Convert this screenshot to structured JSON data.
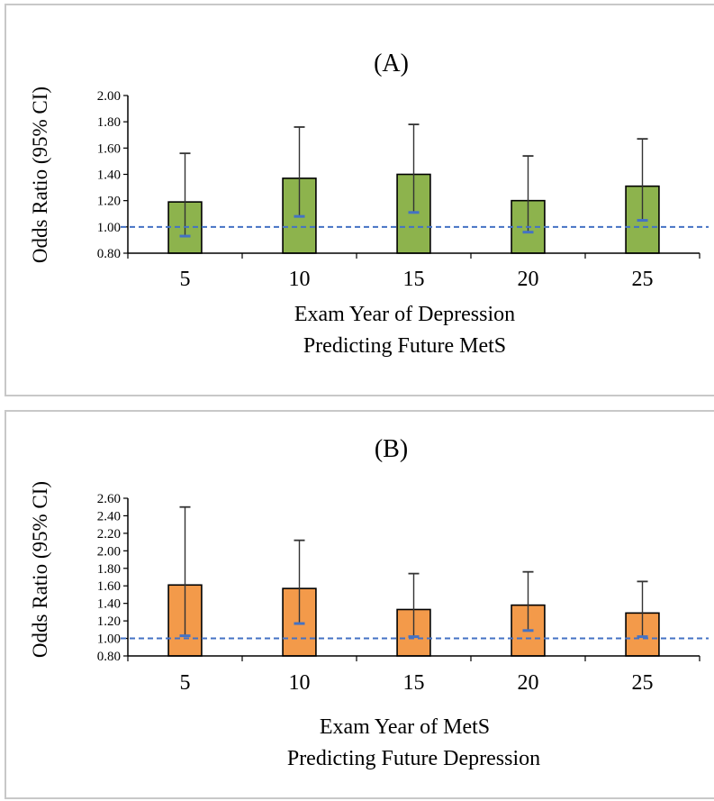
{
  "colors": {
    "panel_a_bar": "#8db34d",
    "panel_b_bar": "#f39a4a",
    "reference_line": "#4472c4",
    "axis": "#000000"
  },
  "chart_data": [
    {
      "type": "bar",
      "title": "(A)",
      "xlabel_lines": [
        "Exam Year of Depression",
        "Predicting Future MetS"
      ],
      "ylabel": "Odds Ratio (95% CI)",
      "categories": [
        "5",
        "10",
        "15",
        "20",
        "25"
      ],
      "values": [
        1.19,
        1.37,
        1.4,
        1.2,
        1.31
      ],
      "ci_lower": [
        0.93,
        1.08,
        1.11,
        0.96,
        1.05
      ],
      "ci_upper": [
        1.56,
        1.76,
        1.78,
        1.54,
        1.67
      ],
      "ylim": [
        0.8,
        2.0
      ],
      "yticks": [
        "0.80",
        "1.00",
        "1.20",
        "1.40",
        "1.60",
        "1.80",
        "2.00"
      ],
      "reference_line": 1.0,
      "grid": false,
      "legend": "none"
    },
    {
      "type": "bar",
      "title": "(B)",
      "xlabel_lines": [
        "Exam Year of MetS",
        "Predicting Future Depression"
      ],
      "ylabel": "Odds Ratio (95% CI)",
      "categories": [
        "5",
        "10",
        "15",
        "20",
        "25"
      ],
      "values": [
        1.61,
        1.57,
        1.33,
        1.38,
        1.29
      ],
      "ci_lower": [
        1.03,
        1.17,
        1.02,
        1.09,
        1.02
      ],
      "ci_upper": [
        2.5,
        2.12,
        1.74,
        1.76,
        1.65
      ],
      "ylim": [
        0.8,
        2.6
      ],
      "yticks": [
        "0.80",
        "1.00",
        "1.20",
        "1.40",
        "1.60",
        "1.80",
        "2.00",
        "2.20",
        "2.40",
        "2.60"
      ],
      "reference_line": 1.0,
      "grid": false,
      "legend": "none"
    }
  ]
}
